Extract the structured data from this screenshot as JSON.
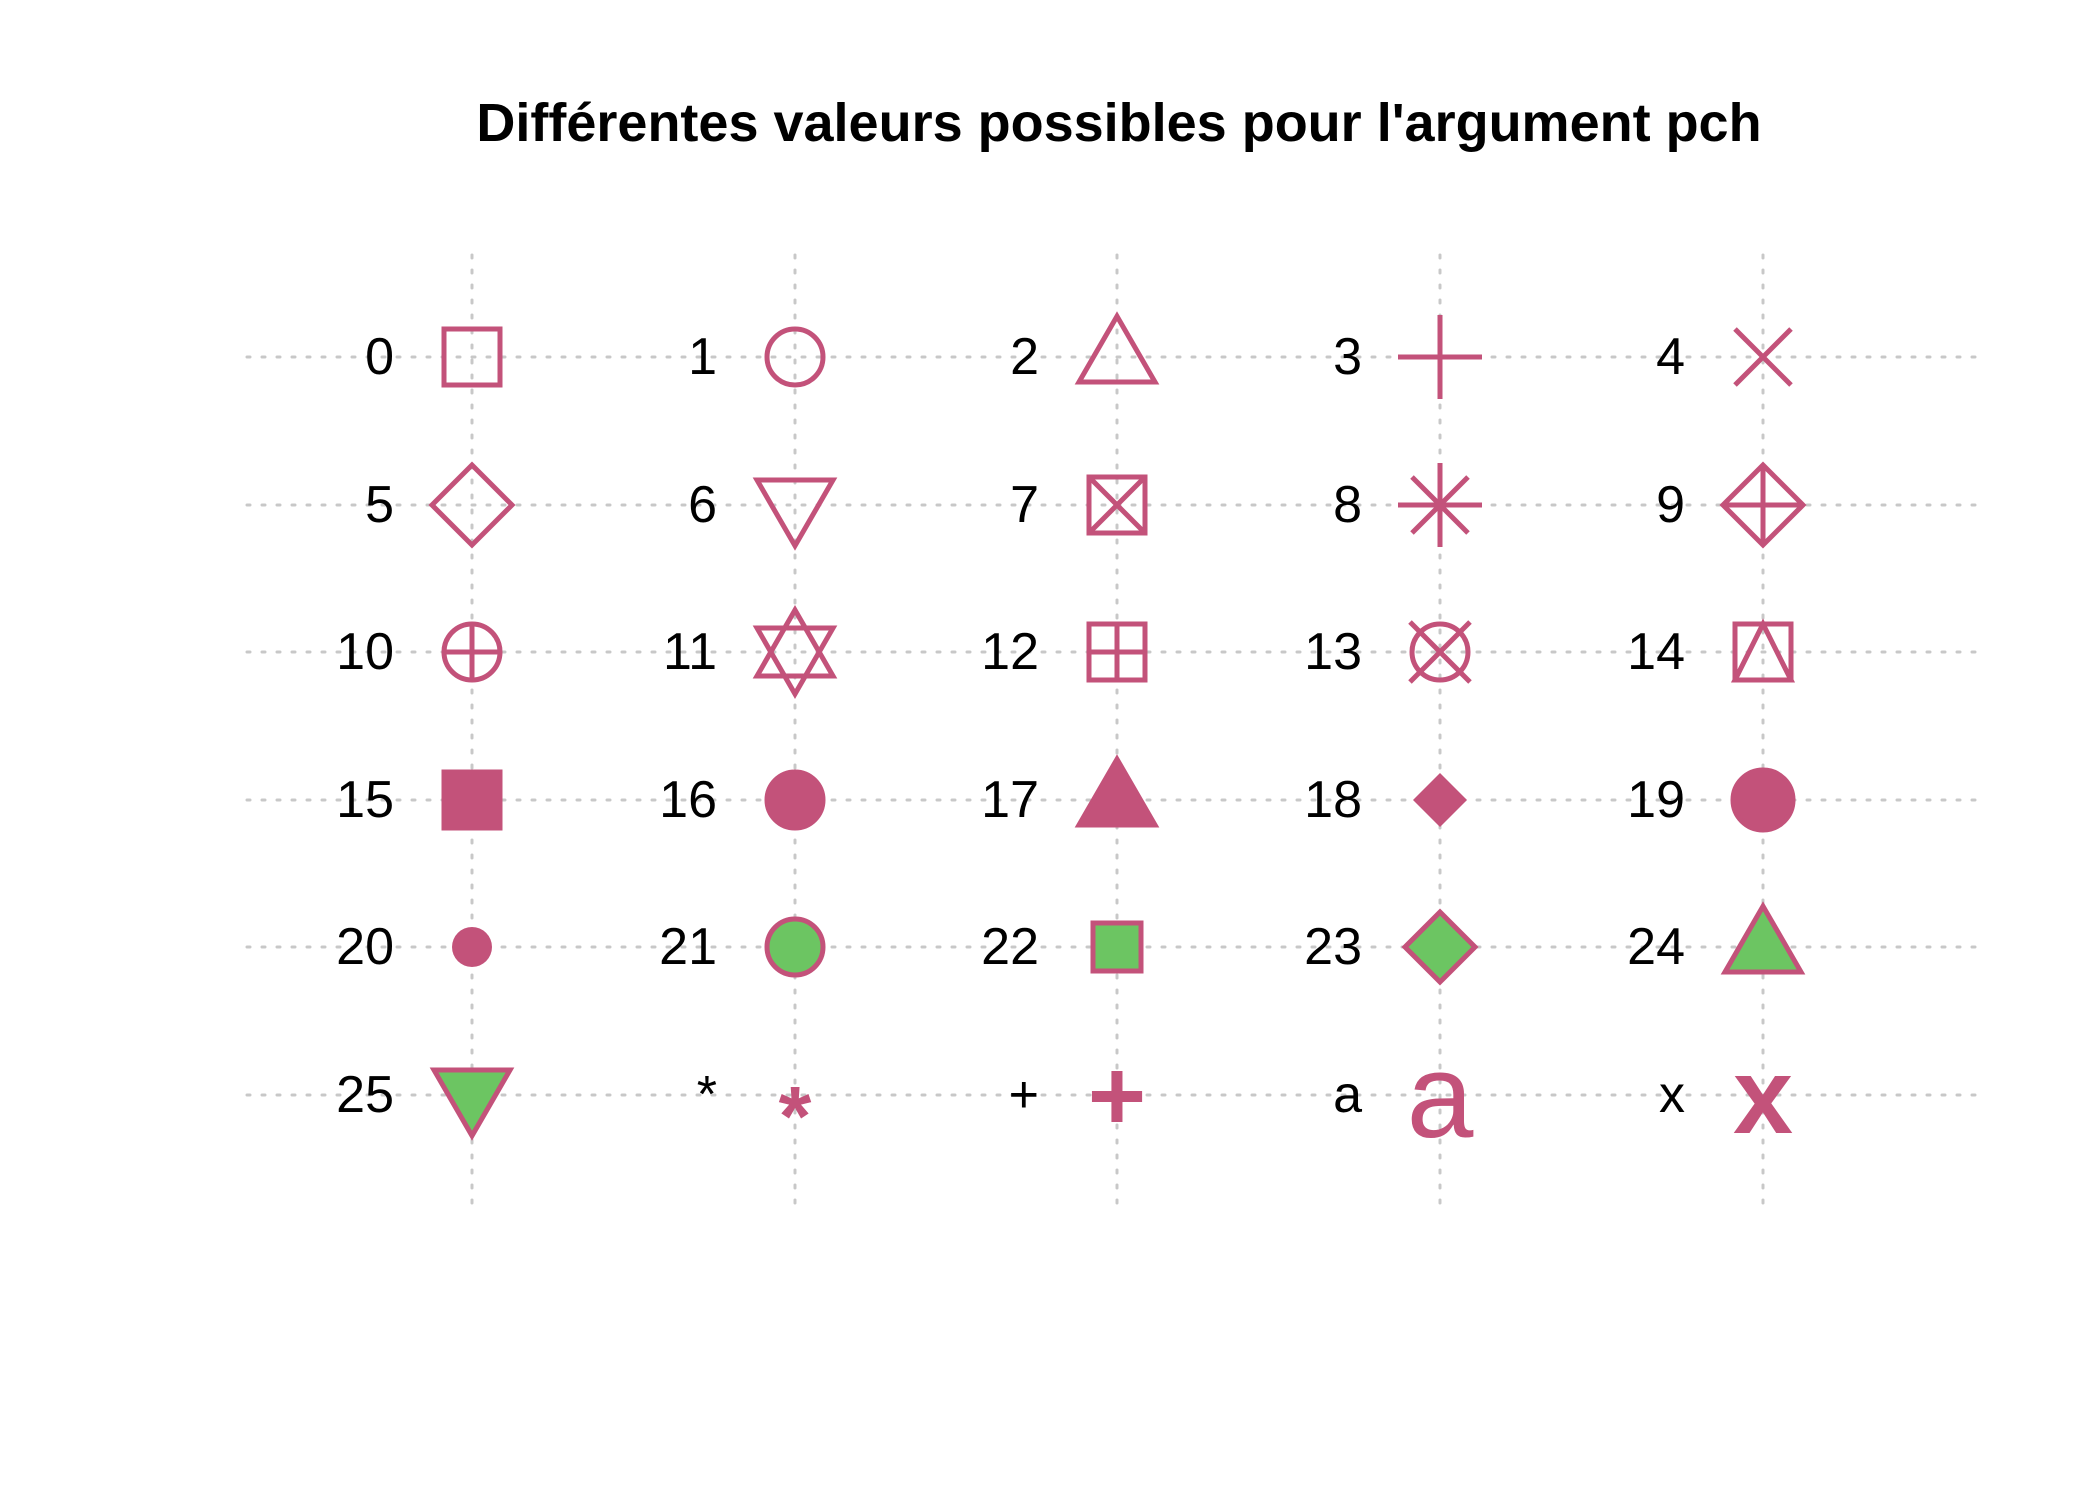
{
  "chart_data": {
    "type": "scatter",
    "title": "Différentes valeurs possibles pour l'argument pch",
    "xlabel": "",
    "ylabel": "",
    "grid": true,
    "colors": {
      "stroke": "#c3527a",
      "fill": "#6cc562",
      "grid": "#c8c8c8",
      "text": "#000000"
    },
    "columns": 5,
    "rows": 6,
    "points": [
      {
        "label": "0",
        "pch": 0
      },
      {
        "label": "1",
        "pch": 1
      },
      {
        "label": "2",
        "pch": 2
      },
      {
        "label": "3",
        "pch": 3
      },
      {
        "label": "4",
        "pch": 4
      },
      {
        "label": "5",
        "pch": 5
      },
      {
        "label": "6",
        "pch": 6
      },
      {
        "label": "7",
        "pch": 7
      },
      {
        "label": "8",
        "pch": 8
      },
      {
        "label": "9",
        "pch": 9
      },
      {
        "label": "10",
        "pch": 10
      },
      {
        "label": "11",
        "pch": 11
      },
      {
        "label": "12",
        "pch": 12
      },
      {
        "label": "13",
        "pch": 13
      },
      {
        "label": "14",
        "pch": 14
      },
      {
        "label": "15",
        "pch": 15
      },
      {
        "label": "16",
        "pch": 16
      },
      {
        "label": "17",
        "pch": 17
      },
      {
        "label": "18",
        "pch": 18
      },
      {
        "label": "19",
        "pch": 19
      },
      {
        "label": "20",
        "pch": 20
      },
      {
        "label": "21",
        "pch": 21
      },
      {
        "label": "22",
        "pch": 22
      },
      {
        "label": "23",
        "pch": 23
      },
      {
        "label": "24",
        "pch": 24
      },
      {
        "label": "25",
        "pch": 25
      },
      {
        "label": "*",
        "pch": "*"
      },
      {
        "label": "+",
        "pch": "+"
      },
      {
        "label": "a",
        "pch": "a"
      },
      {
        "label": "x",
        "pch": "x"
      }
    ]
  }
}
